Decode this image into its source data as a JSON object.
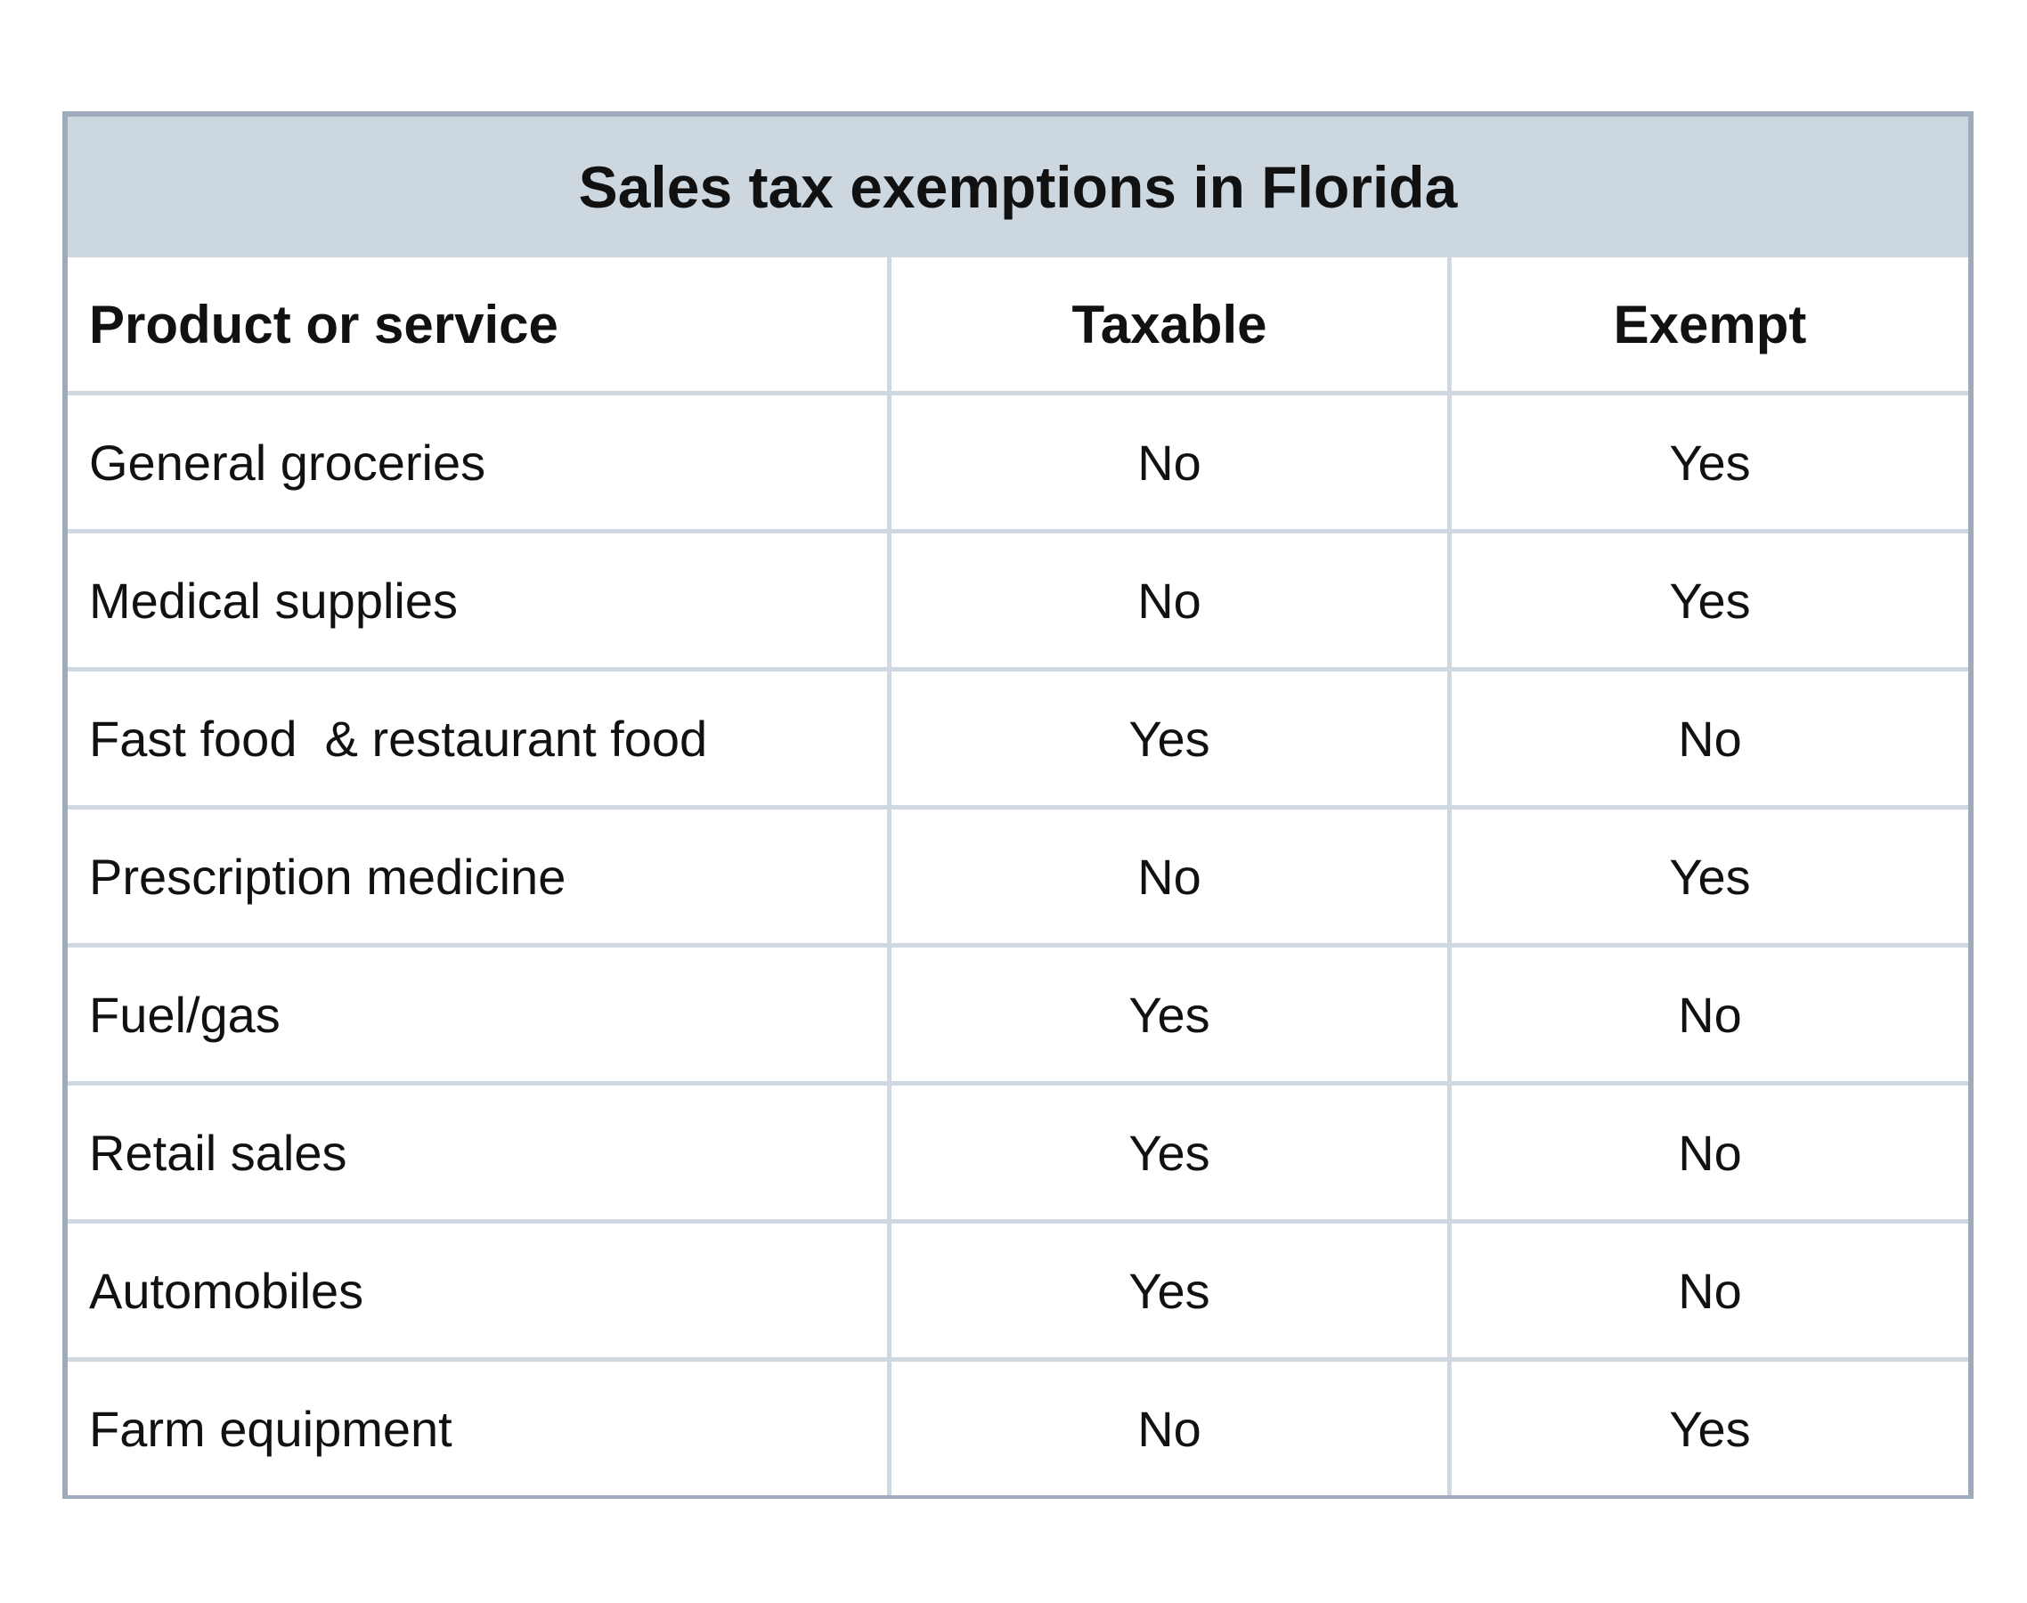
{
  "title": "Sales tax exemptions in Florida",
  "headers": [
    "Product or service",
    "Taxable",
    "Exempt"
  ],
  "rows": [
    [
      "General groceries",
      "No",
      "Yes"
    ],
    [
      "Medical supplies",
      "No",
      "Yes"
    ],
    [
      "Fast food  & restaurant food",
      "Yes",
      "No"
    ],
    [
      "Prescription medicine",
      "No",
      "Yes"
    ],
    [
      "Fuel/gas",
      "Yes",
      "No"
    ],
    [
      "Retail sales",
      "Yes",
      "No"
    ],
    [
      "Automobiles",
      "Yes",
      "No"
    ],
    [
      "Farm equipment",
      "No",
      "Yes"
    ]
  ]
}
